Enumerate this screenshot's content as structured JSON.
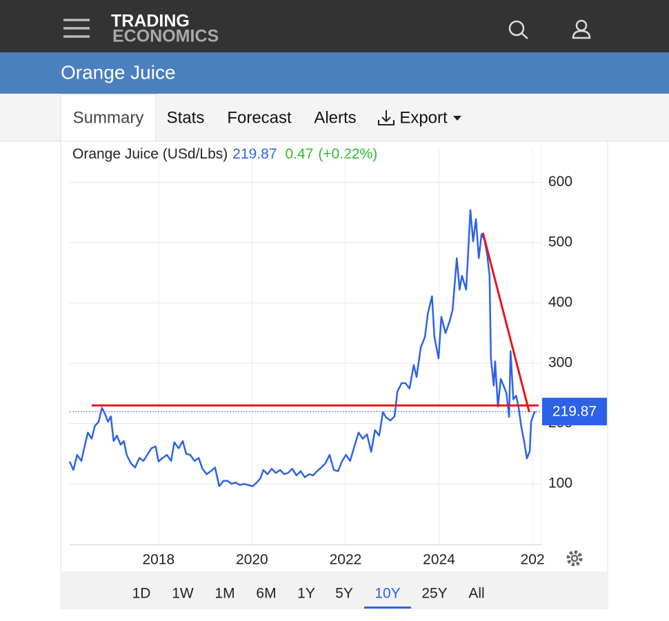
{
  "header": {
    "logo_top": "TRADING",
    "logo_bottom": "ECONOMICS"
  },
  "page_title": "Orange Juice",
  "tabs": [
    "Summary",
    "Stats",
    "Forecast",
    "Alerts",
    "Export"
  ],
  "quote": {
    "price": "219.87",
    "change": "0.47",
    "change_pct": "(+0.22%)"
  },
  "chart_data": {
    "type": "line",
    "x": [
      2016.1,
      2016.18,
      2016.26,
      2016.35,
      2016.41,
      2016.49,
      2016.57,
      2016.64,
      2016.72,
      2016.79,
      2016.85,
      2016.92,
      2016.98,
      2017.04,
      2017.11,
      2017.19,
      2017.26,
      2017.32,
      2017.41,
      2017.5,
      2017.59,
      2017.68,
      2017.76,
      2017.85,
      2017.94,
      2018.0,
      2018.09,
      2018.18,
      2018.27,
      2018.34,
      2018.43,
      2018.52,
      2018.59,
      2018.68,
      2018.77,
      2018.86,
      2018.94,
      2019.03,
      2019.12,
      2019.21,
      2019.3,
      2019.39,
      2019.48,
      2019.56,
      2019.65,
      2019.74,
      2019.83,
      2019.92,
      2020.01,
      2020.1,
      2020.18,
      2020.24,
      2020.33,
      2020.42,
      2020.51,
      2020.6,
      2020.69,
      2020.77,
      2020.86,
      2020.95,
      2021.04,
      2021.13,
      2021.22,
      2021.31,
      2021.39,
      2021.48,
      2021.57,
      2021.66,
      2021.75,
      2021.84,
      2021.93,
      2022.01,
      2022.1,
      2022.19,
      2022.28,
      2022.37,
      2022.46,
      2022.55,
      2022.63,
      2022.72,
      2022.8,
      2022.87,
      2022.96,
      2023.05,
      2023.11,
      2023.2,
      2023.28,
      2023.37,
      2023.46,
      2023.52,
      2023.61,
      2023.7,
      2023.76,
      2023.85,
      2023.9,
      2023.99,
      2024.05,
      2024.14,
      2024.23,
      2024.29,
      2024.38,
      2024.44,
      2024.49,
      2024.58,
      2024.64,
      2024.67,
      2024.73,
      2024.79,
      2024.85,
      2024.91,
      2024.97,
      2025.03,
      2025.08,
      2025.11,
      2025.17,
      2025.2,
      2025.26,
      2025.32,
      2025.38,
      2025.44,
      2025.5,
      2025.53,
      2025.59,
      2025.65,
      2025.7,
      2025.76,
      2025.82,
      2025.88,
      2025.94,
      2025.97,
      2026.03,
      2026.06
    ],
    "series": [
      {
        "name": "Orange Juice (USd/Lbs)",
        "color": "#2d62e8",
        "values": [
          137,
          123,
          148,
          138,
          159,
          185,
          175,
          196,
          203,
          226,
          217,
          203,
          212,
          171,
          180,
          165,
          171,
          148,
          134,
          127,
          143,
          138,
          148,
          159,
          162,
          137,
          143,
          148,
          138,
          169,
          159,
          171,
          150,
          148,
          138,
          143,
          125,
          116,
          121,
          127,
          96,
          105,
          105,
          100,
          102,
          98,
          100,
          98,
          96,
          102,
          109,
          123,
          116,
          125,
          118,
          123,
          116,
          118,
          125,
          114,
          121,
          111,
          116,
          114,
          121,
          127,
          134,
          148,
          123,
          121,
          138,
          148,
          138,
          162,
          185,
          175,
          182,
          153,
          189,
          180,
          219,
          210,
          205,
          212,
          253,
          267,
          267,
          258,
          297,
          277,
          326,
          344,
          382,
          411,
          344,
          308,
          377,
          350,
          370,
          388,
          474,
          422,
          445,
          422,
          508,
          554,
          502,
          539,
          474,
          514,
          505,
          480,
          445,
          308,
          263,
          303,
          228,
          274,
          263,
          251,
          211,
          320,
          240,
          246,
          228,
          194,
          171,
          142,
          154,
          203,
          217,
          219.87
        ]
      }
    ],
    "trend_lines": [
      {
        "color": "#e8141c",
        "x": [
          2016.57,
          2026.13
        ],
        "values": [
          230,
          230
        ]
      },
      {
        "color": "#e8141c",
        "x": [
          2024.94,
          2025.93
        ],
        "values": [
          516,
          219
        ]
      }
    ],
    "xlim": [
      2016.1,
      2026.19
    ],
    "ylim": [
      0,
      625
    ],
    "xticks": [
      2018,
      2020,
      2022,
      2024,
      {
        "value": 2026,
        "label": "202"
      }
    ],
    "yticks": [
      100,
      200,
      300,
      400,
      500,
      600
    ],
    "grid": true
  },
  "ranges": [
    "1D",
    "1W",
    "1M",
    "6M",
    "1Y",
    "5Y",
    "10Y",
    "25Y",
    "All"
  ]
}
